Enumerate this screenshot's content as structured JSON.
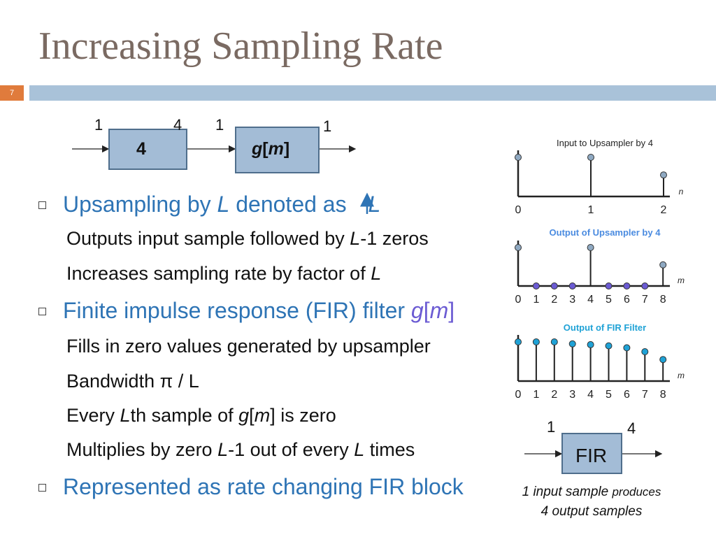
{
  "slide": {
    "title": "Increasing Sampling Rate",
    "number": "7"
  },
  "top_diagram": {
    "rate_in": "1",
    "up_factor": "4",
    "rate_mid_out": "4",
    "rate_mid_in": "1",
    "filter_label_g": "g",
    "filter_label_m": "m",
    "rate_out": "1"
  },
  "bullets": {
    "b1_text": "Upsampling by ",
    "b1_L": "L",
    "b1_text2": " denoted as ",
    "b1_L2": "L",
    "s1a": "Outputs input sample followed by ",
    "s1a_L": "L",
    "s1a_end": "-1 zeros",
    "s1b": "Increases sampling rate by factor of ",
    "s1b_L": "L",
    "b2_text": "Finite impulse response (FIR) filter ",
    "b2_g": "g",
    "b2_m": "m",
    "s2a": "Fills in zero values generated by upsampler",
    "s2b": "Bandwidth π / L",
    "s2c_L": "L",
    "s2c_mid": "th sample of ",
    "s2c_g": "g",
    "s2c_m": "m",
    "s2c_end": "] is zero",
    "s2c_start": "Every ",
    "s2d": "Multiplies by zero ",
    "s2d_L": "L",
    "s2d_mid": "-1 out of every ",
    "s2d_L2": "L",
    "s2d_end": " times",
    "b3_text": "Represented as rate changing FIR block"
  },
  "plot1": {
    "title": "Input to Upsampler by 4",
    "axis_label": "n",
    "ticks": [
      "0",
      "1",
      "2"
    ],
    "values": [
      1.0,
      1.0,
      0.55
    ],
    "color": "#8fa9c2"
  },
  "plot2": {
    "title": "Output of Upsampler by 4",
    "axis_label": "m",
    "ticks": [
      "0",
      "1",
      "2",
      "3",
      "4",
      "5",
      "6",
      "7",
      "8"
    ],
    "values": [
      1.0,
      0,
      0,
      0,
      1.0,
      0,
      0,
      0,
      0.55
    ],
    "color_nonzero": "#8fa9c2",
    "color_zero": "#6b5bd3"
  },
  "plot3": {
    "title": "Output of FIR Filter",
    "axis_label": "m",
    "ticks": [
      "0",
      "1",
      "2",
      "3",
      "4",
      "5",
      "6",
      "7",
      "8"
    ],
    "values": [
      1.0,
      1.0,
      1.0,
      0.95,
      0.93,
      0.9,
      0.85,
      0.75,
      0.55
    ],
    "color": "#1fa2d6"
  },
  "fir_block": {
    "label": "FIR",
    "rate_in": "1",
    "rate_out": "4",
    "caption_line1a": "1 input sample ",
    "caption_line1b": "produces",
    "caption_line2": "4 output samples"
  }
}
